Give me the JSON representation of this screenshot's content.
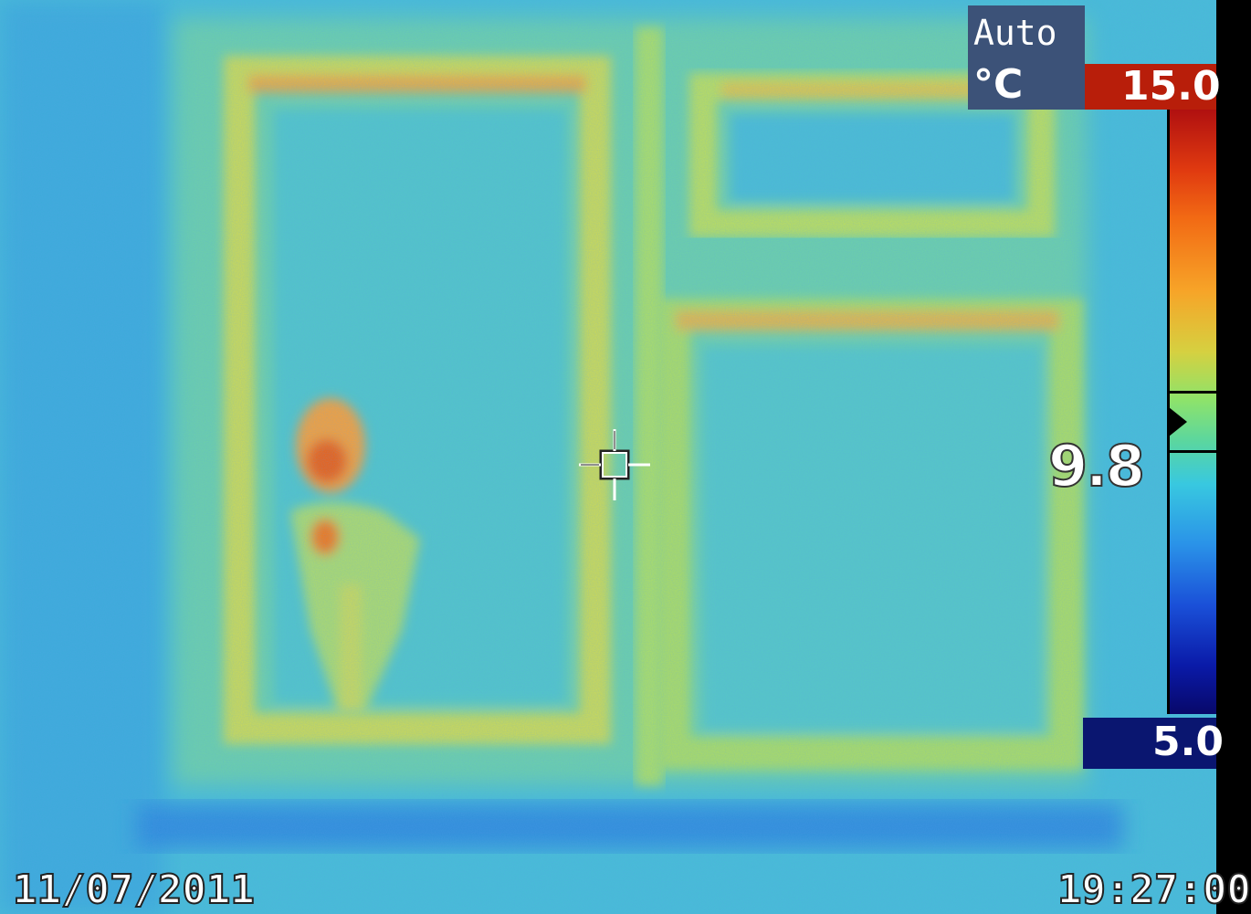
{
  "scale": {
    "mode": "Auto",
    "unit": "°C",
    "max": "15.0",
    "min": "5.0"
  },
  "spot": {
    "value": "9.8"
  },
  "footer": {
    "date": "11/07/2011",
    "time": "19:27:00"
  },
  "palette": {
    "background": "#40b8d8",
    "cool": "#3aa8e0",
    "mild": "#8fe07a",
    "warm": "#f0a040",
    "hot": "#e06420",
    "scale_max_color": "#b81e0a",
    "scale_min_color": "#0a1670",
    "mode_box_color": "#3c5278"
  }
}
